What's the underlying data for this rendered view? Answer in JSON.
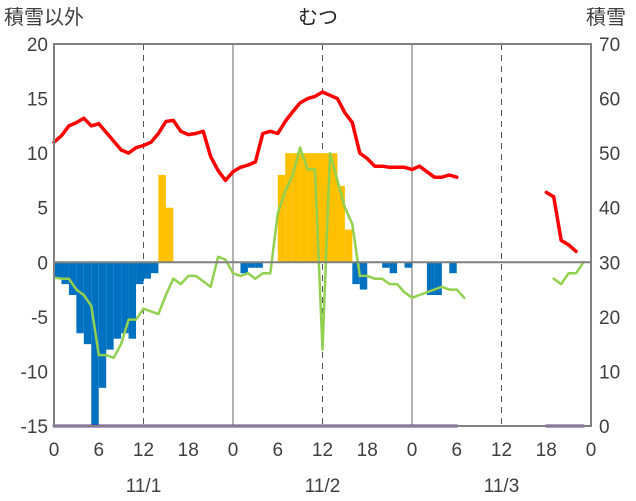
{
  "title": "むつ",
  "left_axis_label": "積雪以外",
  "right_axis_label": "積雪",
  "x_tick_labels": [
    "0",
    "6",
    "12",
    "18",
    "0",
    "6",
    "12",
    "18",
    "0",
    "6",
    "12",
    "18",
    "0"
  ],
  "date_labels": [
    "11/1",
    "11/2",
    "11/3"
  ],
  "colors": {
    "temperature": "#ff0000",
    "snowfall": "#ffc000",
    "snow_decrease": "#0070c0",
    "snow_depth": "#92d050",
    "precip_line": "#7030a0",
    "axis": "#808080"
  },
  "chart_data": {
    "type": "bar",
    "title": "むつ",
    "y_left": {
      "label": "積雪以外",
      "range": [
        -15,
        20
      ],
      "ticks": [
        -15,
        -10,
        -5,
        0,
        5,
        10,
        15,
        20
      ]
    },
    "y_right": {
      "label": "積雪",
      "range": [
        0,
        70
      ],
      "ticks": [
        0,
        10,
        20,
        30,
        40,
        50,
        60,
        70
      ]
    },
    "x": {
      "unit": "hour",
      "range": [
        0,
        72
      ],
      "tick_step": 6,
      "tick_labels": [
        "0",
        "6",
        "12",
        "18",
        "0",
        "6",
        "12",
        "18",
        "0",
        "6",
        "12",
        "18",
        "0"
      ],
      "date_labels": [
        "11/1",
        "11/2",
        "11/3"
      ]
    },
    "grid": "vertical dashed at 12h, solid at 24h boundaries",
    "series": [
      {
        "kind": "line",
        "axis": "left",
        "color": "#ff0000",
        "points": [
          [
            0,
            11
          ],
          [
            1,
            11.6
          ],
          [
            2,
            12.5
          ],
          [
            3,
            12.8
          ],
          [
            4,
            13.2
          ],
          [
            5,
            12.5
          ],
          [
            6,
            12.7
          ],
          [
            7,
            11.9
          ],
          [
            8,
            11.1
          ],
          [
            9,
            10.3
          ],
          [
            10,
            10
          ],
          [
            11,
            10.5
          ],
          [
            12,
            10.7
          ],
          [
            13,
            11
          ],
          [
            14,
            11.8
          ],
          [
            15,
            12.9
          ],
          [
            16,
            13
          ],
          [
            17,
            12
          ],
          [
            18,
            11.7
          ],
          [
            19,
            11.8
          ],
          [
            20,
            12
          ],
          [
            21,
            9.7
          ],
          [
            22,
            8.4
          ],
          [
            23,
            7.5
          ],
          [
            24,
            8.3
          ],
          [
            25,
            8.7
          ],
          [
            26,
            8.9
          ],
          [
            27,
            9.2
          ],
          [
            28,
            11.8
          ],
          [
            29,
            12
          ],
          [
            30,
            11.8
          ],
          [
            31,
            12.9
          ],
          [
            32,
            13.8
          ],
          [
            33,
            14.6
          ],
          [
            34,
            15
          ],
          [
            35,
            15.2
          ],
          [
            36,
            15.6
          ],
          [
            37,
            15.3
          ],
          [
            38,
            15
          ],
          [
            39,
            13.7
          ],
          [
            40,
            12.8
          ],
          [
            41,
            10
          ],
          [
            42,
            9.5
          ],
          [
            43,
            8.8
          ],
          [
            44,
            8.8
          ],
          [
            45,
            8.7
          ],
          [
            46,
            8.7
          ],
          [
            47,
            8.7
          ],
          [
            48,
            8.5
          ],
          [
            49,
            8.8
          ],
          [
            50,
            8.3
          ],
          [
            51,
            7.8
          ],
          [
            52,
            7.8
          ],
          [
            53,
            8
          ],
          [
            54,
            7.8
          ]
        ],
        "segments_2": [
          [
            66,
            6.4
          ],
          [
            67,
            6
          ],
          [
            68,
            2
          ],
          [
            69,
            1.6
          ],
          [
            70,
            1
          ]
        ]
      },
      {
        "kind": "line",
        "axis": "right",
        "color": "#92d050",
        "points": [
          [
            0,
            27.2
          ],
          [
            1,
            27
          ],
          [
            2,
            27
          ],
          [
            3,
            25
          ],
          [
            4,
            24
          ],
          [
            5,
            22
          ],
          [
            6,
            13
          ],
          [
            7,
            13
          ],
          [
            8,
            12.5
          ],
          [
            9,
            15
          ],
          [
            10,
            19.5
          ],
          [
            11,
            19.5
          ],
          [
            12,
            21.5
          ],
          [
            13,
            21
          ],
          [
            14,
            20.5
          ],
          [
            15,
            24
          ],
          [
            16,
            27
          ],
          [
            17,
            26
          ],
          [
            18,
            27.5
          ],
          [
            19,
            27.5
          ],
          [
            20,
            26.5
          ],
          [
            21,
            25.5
          ],
          [
            22,
            31
          ],
          [
            23,
            30.5
          ],
          [
            24,
            28
          ],
          [
            25,
            27.5
          ],
          [
            26,
            28
          ],
          [
            27,
            27
          ],
          [
            28,
            28
          ],
          [
            29,
            28
          ],
          [
            30,
            39
          ],
          [
            31,
            43
          ],
          [
            32,
            46
          ],
          [
            33,
            51
          ],
          [
            34,
            47
          ],
          [
            35,
            47
          ],
          [
            36,
            14
          ],
          [
            37,
            50
          ],
          [
            38,
            45
          ],
          [
            39,
            40
          ],
          [
            40,
            37
          ],
          [
            41,
            27.5
          ],
          [
            42,
            27.5
          ],
          [
            43,
            27
          ],
          [
            44,
            27
          ],
          [
            45,
            26
          ],
          [
            46,
            26
          ],
          [
            47,
            24.5
          ],
          [
            48,
            23.5
          ],
          [
            49,
            24
          ],
          [
            50,
            24.5
          ],
          [
            51,
            25
          ],
          [
            52,
            25.5
          ],
          [
            53,
            25
          ],
          [
            54,
            25
          ],
          [
            55,
            23.5
          ]
        ],
        "segments_2": [
          [
            67,
            27
          ],
          [
            68,
            26
          ],
          [
            69,
            28
          ],
          [
            70,
            28
          ],
          [
            71,
            30
          ]
        ]
      },
      {
        "kind": "bar",
        "axis": "left",
        "color": "#ffc000",
        "values": [
          [
            15,
            8
          ],
          [
            16,
            5
          ],
          [
            31,
            8
          ],
          [
            32,
            10
          ],
          [
            33,
            10
          ],
          [
            34,
            10
          ],
          [
            35,
            10
          ],
          [
            36,
            10
          ],
          [
            37,
            10
          ],
          [
            38,
            10
          ],
          [
            39,
            7
          ],
          [
            40,
            3
          ]
        ]
      },
      {
        "kind": "bar",
        "axis": "left",
        "color": "#0070c0",
        "values": [
          [
            1,
            -1.5
          ],
          [
            2,
            -2
          ],
          [
            3,
            -3
          ],
          [
            4,
            -6.5
          ],
          [
            5,
            -7.5
          ],
          [
            6,
            -15
          ],
          [
            7,
            -11.5
          ],
          [
            8,
            -8
          ],
          [
            9,
            -7
          ],
          [
            10,
            -6.5
          ],
          [
            11,
            -7
          ],
          [
            12,
            -2
          ],
          [
            13,
            -1.5
          ],
          [
            14,
            -1
          ],
          [
            26,
            -1
          ],
          [
            27,
            -0.5
          ],
          [
            28,
            -0.5
          ],
          [
            41,
            -2
          ],
          [
            42,
            -2.5
          ],
          [
            45,
            -0.5
          ],
          [
            46,
            -1
          ],
          [
            48,
            -0.5
          ],
          [
            51,
            -3
          ],
          [
            52,
            -3
          ],
          [
            54,
            -1
          ]
        ]
      },
      {
        "kind": "line",
        "axis": "left",
        "color": "#7030a0",
        "points": [
          [
            0,
            -15
          ],
          [
            54,
            -15
          ]
        ],
        "segments_2": [
          [
            66,
            -15
          ],
          [
            71,
            -15
          ]
        ]
      }
    ]
  }
}
